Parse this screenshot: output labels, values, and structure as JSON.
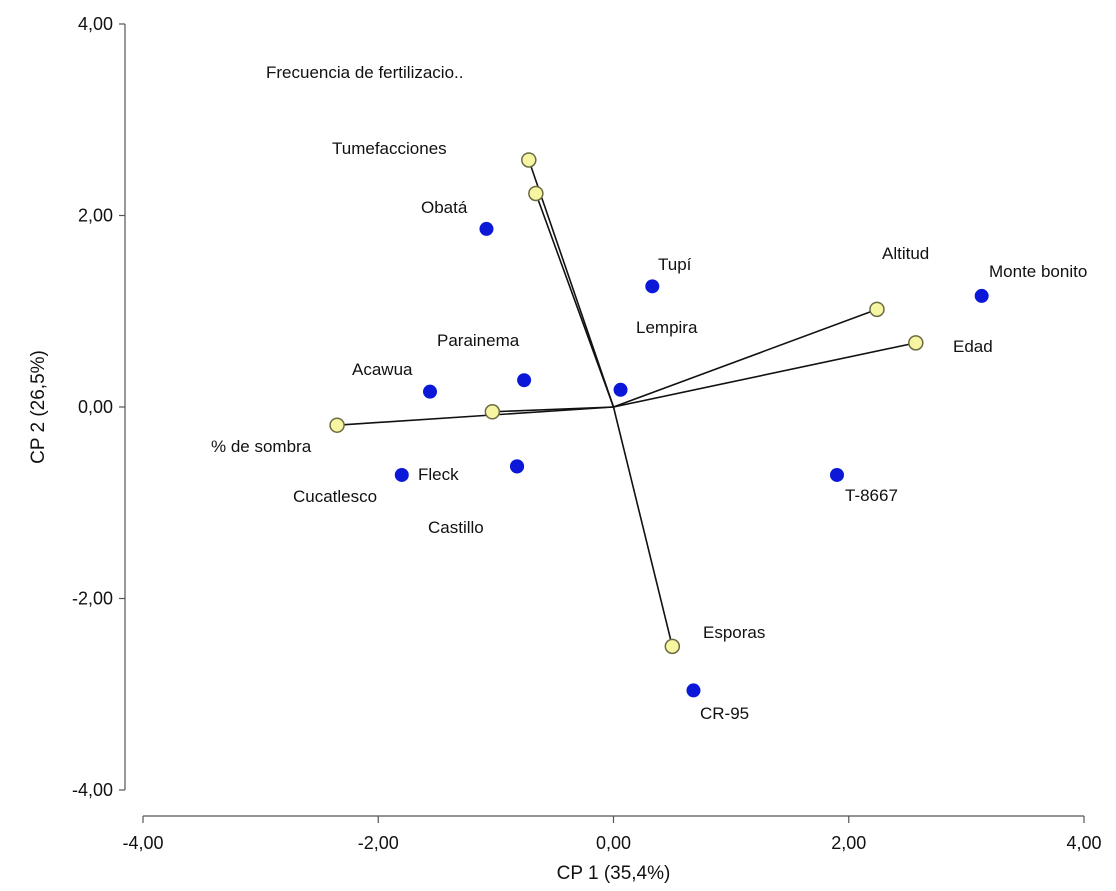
{
  "chart_data": {
    "type": "scatter",
    "subtype": "biplot",
    "xlabel": "CP 1 (35,4%)",
    "ylabel": "CP 2 (26,5%)",
    "xlim": [
      -4,
      4
    ],
    "ylim": [
      -4,
      4
    ],
    "x_ticks": [
      -4,
      -2,
      0,
      2,
      4
    ],
    "y_ticks": [
      -4,
      -2,
      0,
      2,
      4
    ],
    "x_tick_labels": [
      "-4,00",
      "-2,00",
      "0,00",
      "2,00",
      "4,00"
    ],
    "y_tick_labels": [
      "-4,00",
      "-2,00",
      "0,00",
      "2,00",
      "4,00"
    ],
    "grid": false,
    "colors": {
      "observation_fill": "#0b18d8",
      "variable_fill": "#f6f5a2",
      "variable_stroke": "#6b6b43",
      "vector_line": "#111111",
      "axis": "#555555"
    },
    "observations": [
      {
        "label": "Obatá",
        "x": -1.08,
        "y": 1.86
      },
      {
        "label": "Tupí",
        "x": 0.33,
        "y": 1.26
      },
      {
        "label": "Monte bonito",
        "x": 3.13,
        "y": 1.16
      },
      {
        "label": "Acawua",
        "x": -1.56,
        "y": 0.16
      },
      {
        "label": "Parainema",
        "x": -0.76,
        "y": 0.28
      },
      {
        "label": "Lempira",
        "x": 0.06,
        "y": 0.18
      },
      {
        "label": "Cucatlesco",
        "x": -1.8,
        "y": -0.71
      },
      {
        "label": "Fleck",
        "x": -0.82,
        "y": -0.62
      },
      {
        "label": "Castillo",
        "x": -0.82,
        "y": -0.62
      },
      {
        "label": "T-8667",
        "x": 1.9,
        "y": -0.71
      },
      {
        "label": "CR-95",
        "x": 0.68,
        "y": -2.96
      }
    ],
    "variables": [
      {
        "label": "Frecuencia de fertilizacio..",
        "x": -0.72,
        "y": 2.58
      },
      {
        "label": "Tumefacciones",
        "x": -0.66,
        "y": 2.23
      },
      {
        "label": "Altitud",
        "x": 2.24,
        "y": 1.02
      },
      {
        "label": "Edad",
        "x": 2.57,
        "y": 0.67
      },
      {
        "label": "% de sombra",
        "x": -2.35,
        "y": -0.19
      },
      {
        "label": "",
        "x": -1.03,
        "y": -0.05
      },
      {
        "label": "Esporas",
        "x": 0.5,
        "y": -2.5
      }
    ]
  }
}
